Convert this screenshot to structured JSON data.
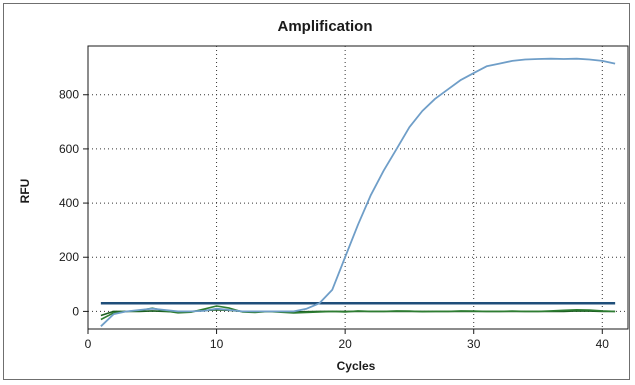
{
  "chart_data": {
    "type": "line",
    "title": "Amplification",
    "xlabel": "Cycles",
    "ylabel": "RFU",
    "xlim": [
      0,
      42
    ],
    "ylim": [
      -65,
      980
    ],
    "xticks": [
      0,
      10,
      20,
      30,
      40
    ],
    "yticks": [
      0,
      200,
      400,
      600,
      800
    ],
    "grid": true,
    "threshold": {
      "value": 30,
      "color": "#1f4e79"
    },
    "series": [
      {
        "color": "#6f9ec8",
        "x": [
          1,
          2,
          3,
          4,
          5,
          6,
          7,
          8,
          9,
          10,
          11,
          12,
          13,
          14,
          15,
          16,
          17,
          18,
          19,
          20,
          21,
          22,
          23,
          24,
          25,
          26,
          27,
          28,
          29,
          30,
          31,
          32,
          33,
          34,
          35,
          36,
          37,
          38,
          39,
          40,
          41
        ],
        "y": [
          -55,
          -10,
          0,
          5,
          10,
          5,
          0,
          0,
          2,
          10,
          5,
          0,
          0,
          0,
          0,
          0,
          10,
          30,
          80,
          200,
          320,
          430,
          520,
          600,
          680,
          740,
          785,
          820,
          855,
          880,
          905,
          915,
          925,
          930,
          932,
          933,
          932,
          933,
          930,
          925,
          915
        ]
      },
      {
        "color": "#2e7d32",
        "x": [
          1,
          2,
          3,
          4,
          5,
          6,
          7,
          8,
          9,
          10,
          11,
          12,
          13,
          14,
          15,
          16,
          17,
          18,
          19,
          20,
          21,
          22,
          23,
          24,
          25,
          26,
          27,
          28,
          29,
          30,
          31,
          32,
          33,
          34,
          35,
          36,
          37,
          38,
          39,
          40,
          41
        ],
        "y": [
          -30,
          -5,
          0,
          3,
          12,
          2,
          -5,
          -3,
          8,
          20,
          12,
          -2,
          -4,
          0,
          -3,
          -6,
          -4,
          -2,
          0,
          -2,
          2,
          0,
          0,
          2,
          1,
          -1,
          0,
          0,
          2,
          1,
          0,
          0,
          1,
          0,
          0,
          2,
          4,
          6,
          5,
          2,
          0
        ]
      },
      {
        "color": "#1b5e20",
        "x": [
          1,
          2,
          3,
          4,
          5,
          6,
          7,
          8,
          9,
          10,
          11,
          12,
          13,
          14,
          15,
          16,
          17,
          18,
          19,
          20,
          21,
          22,
          23,
          24,
          25,
          26,
          27,
          28,
          29,
          30,
          31,
          32,
          33,
          34,
          35,
          36,
          37,
          38,
          39,
          40,
          41
        ],
        "y": [
          -15,
          0,
          0,
          0,
          2,
          0,
          -2,
          0,
          3,
          6,
          4,
          0,
          -1,
          0,
          0,
          -2,
          -1,
          0,
          0,
          0,
          0,
          0,
          0,
          0,
          0,
          0,
          0,
          0,
          0,
          0,
          0,
          0,
          0,
          0,
          0,
          0,
          0,
          2,
          1,
          0,
          0
        ]
      }
    ]
  }
}
